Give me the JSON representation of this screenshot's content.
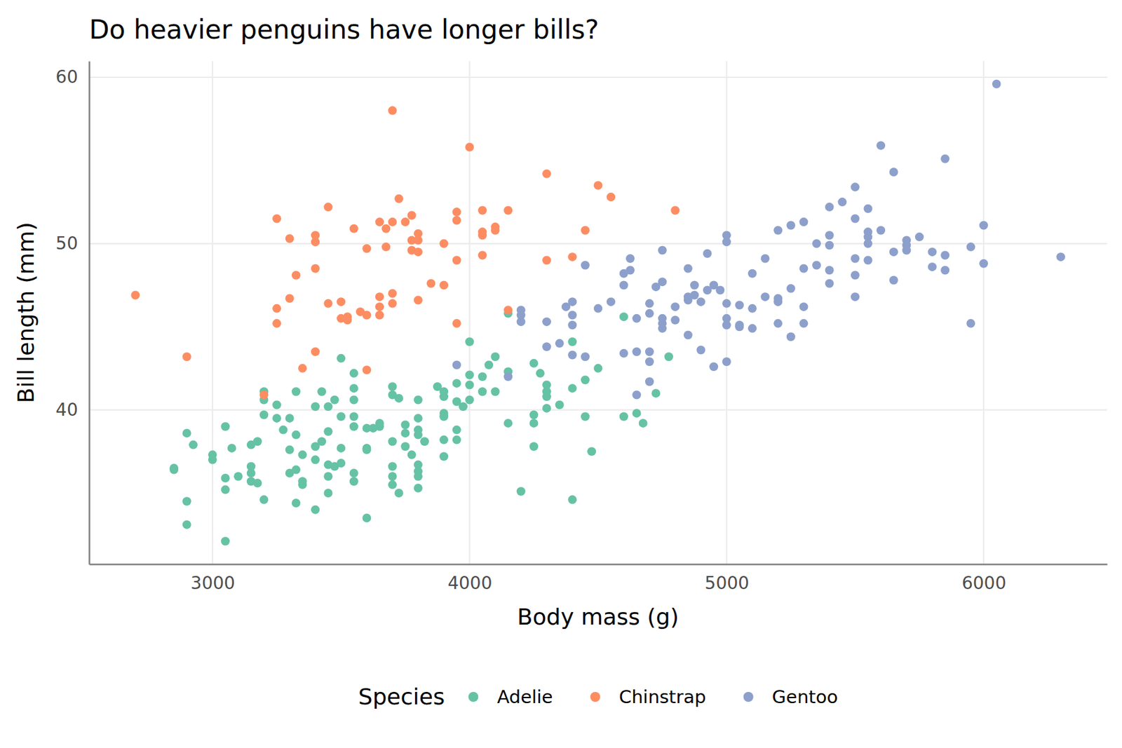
{
  "chart_data": {
    "type": "scatter",
    "title": "Do heavier penguins have longer bills?",
    "x_label": "Body mass (g)",
    "y_label": "Bill length (mm)",
    "legend_title": "Species",
    "legend": "bottom",
    "grid": true,
    "marker": "circle",
    "xlim": [
      2520,
      6480
    ],
    "xticks": [
      3000,
      4000,
      5000,
      6000
    ],
    "ylim": [
      30.725,
      60.975
    ],
    "yticks": [
      40,
      50,
      60
    ],
    "series": [
      {
        "name": "Adelie",
        "color": "#66c2a5",
        "x": [
          2850,
          2850,
          2900,
          2900,
          2900,
          2925,
          3000,
          3000,
          3050,
          3050,
          3050,
          3050,
          3075,
          3100,
          3150,
          3150,
          3150,
          3150,
          3175,
          3175,
          3200,
          3200,
          3200,
          3200,
          3250,
          3250,
          3275,
          3300,
          3300,
          3300,
          3325,
          3325,
          3325,
          3325,
          3350,
          3350,
          3350,
          3400,
          3400,
          3400,
          3400,
          3425,
          3425,
          3450,
          3450,
          3450,
          3450,
          3450,
          3475,
          3475,
          3500,
          3500,
          3500,
          3500,
          3550,
          3550,
          3550,
          3550,
          3550,
          3550,
          3550,
          3600,
          3600,
          3600,
          3600,
          3625,
          3650,
          3650,
          3700,
          3700,
          3700,
          3700,
          3700,
          3700,
          3725,
          3725,
          3750,
          3750,
          3750,
          3775,
          3800,
          3800,
          3800,
          3800,
          3800,
          3800,
          3800,
          3800,
          3825,
          3875,
          3900,
          3900,
          3900,
          3900,
          3900,
          3900,
          3950,
          3950,
          3950,
          3950,
          3975,
          4000,
          4000,
          4000,
          4000,
          4050,
          4050,
          4075,
          4100,
          4100,
          4150,
          4150,
          4150,
          4200,
          4250,
          4250,
          4250,
          4250,
          4275,
          4300,
          4300,
          4300,
          4300,
          4350,
          4400,
          4400,
          4400,
          4450,
          4450,
          4475,
          4500,
          4600,
          4600,
          4650,
          4675,
          4725,
          4775
        ],
        "values": [
          36.5,
          36.4,
          38.6,
          34.5,
          33.1,
          37.9,
          37.3,
          37.0,
          39.0,
          35.9,
          35.2,
          32.1,
          37.7,
          36.0,
          37.9,
          36.6,
          36.2,
          35.7,
          38.1,
          35.6,
          41.1,
          40.6,
          39.7,
          34.6,
          40.3,
          39.5,
          38.8,
          39.5,
          37.6,
          36.2,
          41.1,
          38.5,
          36.4,
          34.4,
          37.3,
          35.7,
          35.5,
          40.2,
          37.8,
          37.0,
          34.0,
          41.1,
          38.1,
          40.2,
          38.7,
          36.7,
          36.0,
          35.0,
          40.6,
          36.6,
          43.1,
          39.6,
          37.7,
          36.8,
          42.2,
          41.3,
          40.6,
          39.6,
          39.0,
          36.2,
          35.7,
          38.9,
          37.7,
          37.6,
          33.5,
          38.9,
          39.2,
          39.0,
          41.4,
          40.9,
          38.1,
          36.6,
          36.0,
          35.5,
          40.7,
          35.0,
          39.1,
          38.6,
          37.8,
          37.3,
          40.6,
          39.5,
          38.8,
          38.5,
          36.7,
          36.3,
          36.0,
          35.3,
          38.1,
          41.4,
          41.1,
          40.8,
          39.8,
          39.6,
          38.2,
          37.2,
          41.6,
          40.5,
          38.8,
          38.2,
          40.2,
          44.1,
          42.1,
          41.5,
          40.6,
          42.0,
          41.1,
          42.7,
          43.2,
          41.1,
          45.8,
          42.3,
          39.2,
          35.1,
          42.8,
          39.7,
          39.2,
          37.8,
          42.2,
          41.5,
          41.1,
          40.8,
          40.1,
          40.3,
          44.1,
          41.3,
          34.6,
          41.8,
          39.6,
          37.5,
          42.5,
          45.6,
          39.6,
          39.8,
          39.2,
          41.0,
          43.2
        ]
      },
      {
        "name": "Chinstrap",
        "color": "#fc8d62",
        "x": [
          2700,
          2900,
          3200,
          3250,
          3250,
          3250,
          3300,
          3300,
          3325,
          3350,
          3400,
          3400,
          3400,
          3400,
          3450,
          3450,
          3500,
          3500,
          3525,
          3525,
          3550,
          3575,
          3600,
          3600,
          3600,
          3650,
          3650,
          3650,
          3650,
          3675,
          3675,
          3700,
          3700,
          3700,
          3700,
          3725,
          3750,
          3775,
          3775,
          3775,
          3800,
          3800,
          3800,
          3800,
          3850,
          3900,
          3900,
          3950,
          3950,
          3950,
          3950,
          4000,
          4050,
          4050,
          4050,
          4050,
          4100,
          4100,
          4150,
          4150,
          4300,
          4300,
          4400,
          4450,
          4500,
          4550,
          4800
        ],
        "values": [
          46.9,
          43.2,
          40.9,
          51.5,
          46.1,
          45.2,
          50.3,
          46.7,
          48.1,
          42.5,
          50.5,
          50.1,
          48.5,
          43.5,
          52.2,
          46.4,
          46.5,
          45.5,
          45.6,
          45.4,
          50.9,
          45.9,
          49.7,
          45.7,
          42.4,
          51.3,
          46.8,
          46.2,
          45.7,
          50.9,
          49.8,
          58.0,
          51.3,
          47.0,
          46.4,
          52.7,
          51.3,
          51.7,
          50.2,
          49.6,
          50.6,
          50.2,
          49.5,
          46.6,
          47.6,
          50.0,
          47.5,
          51.9,
          51.4,
          49.0,
          45.2,
          55.8,
          52.0,
          50.7,
          50.5,
          49.3,
          51.0,
          50.8,
          52.0,
          46.0,
          54.2,
          49.0,
          49.2,
          50.8,
          53.5,
          52.8,
          52.0
        ]
      },
      {
        "name": "Gentoo",
        "color": "#8da0cb",
        "x": [
          3950,
          4150,
          4200,
          4200,
          4200,
          4300,
          4300,
          4350,
          4375,
          4400,
          4400,
          4400,
          4400,
          4450,
          4450,
          4500,
          4550,
          4600,
          4600,
          4600,
          4625,
          4625,
          4650,
          4650,
          4650,
          4700,
          4700,
          4700,
          4700,
          4700,
          4725,
          4750,
          4750,
          4750,
          4750,
          4750,
          4800,
          4800,
          4850,
          4850,
          4850,
          4850,
          4875,
          4875,
          4900,
          4900,
          4925,
          4925,
          4950,
          4950,
          4975,
          5000,
          5000,
          5000,
          5000,
          5000,
          5000,
          5050,
          5050,
          5050,
          5100,
          5100,
          5100,
          5150,
          5150,
          5200,
          5200,
          5200,
          5200,
          5250,
          5250,
          5250,
          5300,
          5300,
          5300,
          5300,
          5350,
          5350,
          5400,
          5400,
          5400,
          5400,
          5400,
          5450,
          5500,
          5500,
          5500,
          5500,
          5500,
          5550,
          5550,
          5550,
          5550,
          5550,
          5600,
          5600,
          5650,
          5650,
          5650,
          5700,
          5700,
          5700,
          5750,
          5800,
          5800,
          5850,
          5850,
          5850,
          5950,
          5950,
          6000,
          6000,
          6050,
          6300
        ],
        "values": [
          42.7,
          42.0,
          46.0,
          45.7,
          45.3,
          45.3,
          43.8,
          44.0,
          46.2,
          46.5,
          45.7,
          45.1,
          43.3,
          48.7,
          43.2,
          46.1,
          46.5,
          48.2,
          47.5,
          43.4,
          49.1,
          48.4,
          45.5,
          43.5,
          40.9,
          46.4,
          45.8,
          43.5,
          42.9,
          41.7,
          47.4,
          49.6,
          47.7,
          45.5,
          45.2,
          44.9,
          46.2,
          45.4,
          48.5,
          46.8,
          46.6,
          44.5,
          47.5,
          46.9,
          46.5,
          43.6,
          49.4,
          47.2,
          47.5,
          42.6,
          47.2,
          50.5,
          50.1,
          46.4,
          45.5,
          45.1,
          42.9,
          46.3,
          45.1,
          45.0,
          48.2,
          46.1,
          44.9,
          49.1,
          46.8,
          50.8,
          46.7,
          46.5,
          45.2,
          51.1,
          47.3,
          44.4,
          51.3,
          48.5,
          46.2,
          45.2,
          50.0,
          48.7,
          52.2,
          50.5,
          49.9,
          48.4,
          47.6,
          52.5,
          53.4,
          51.5,
          49.1,
          48.1,
          46.8,
          52.1,
          50.7,
          50.4,
          50.0,
          49.0,
          55.9,
          50.8,
          54.3,
          49.5,
          47.8,
          50.2,
          49.9,
          49.6,
          50.4,
          49.5,
          48.6,
          55.1,
          49.3,
          48.4,
          49.8,
          45.2,
          51.1,
          48.8,
          59.6,
          49.2
        ]
      }
    ]
  }
}
